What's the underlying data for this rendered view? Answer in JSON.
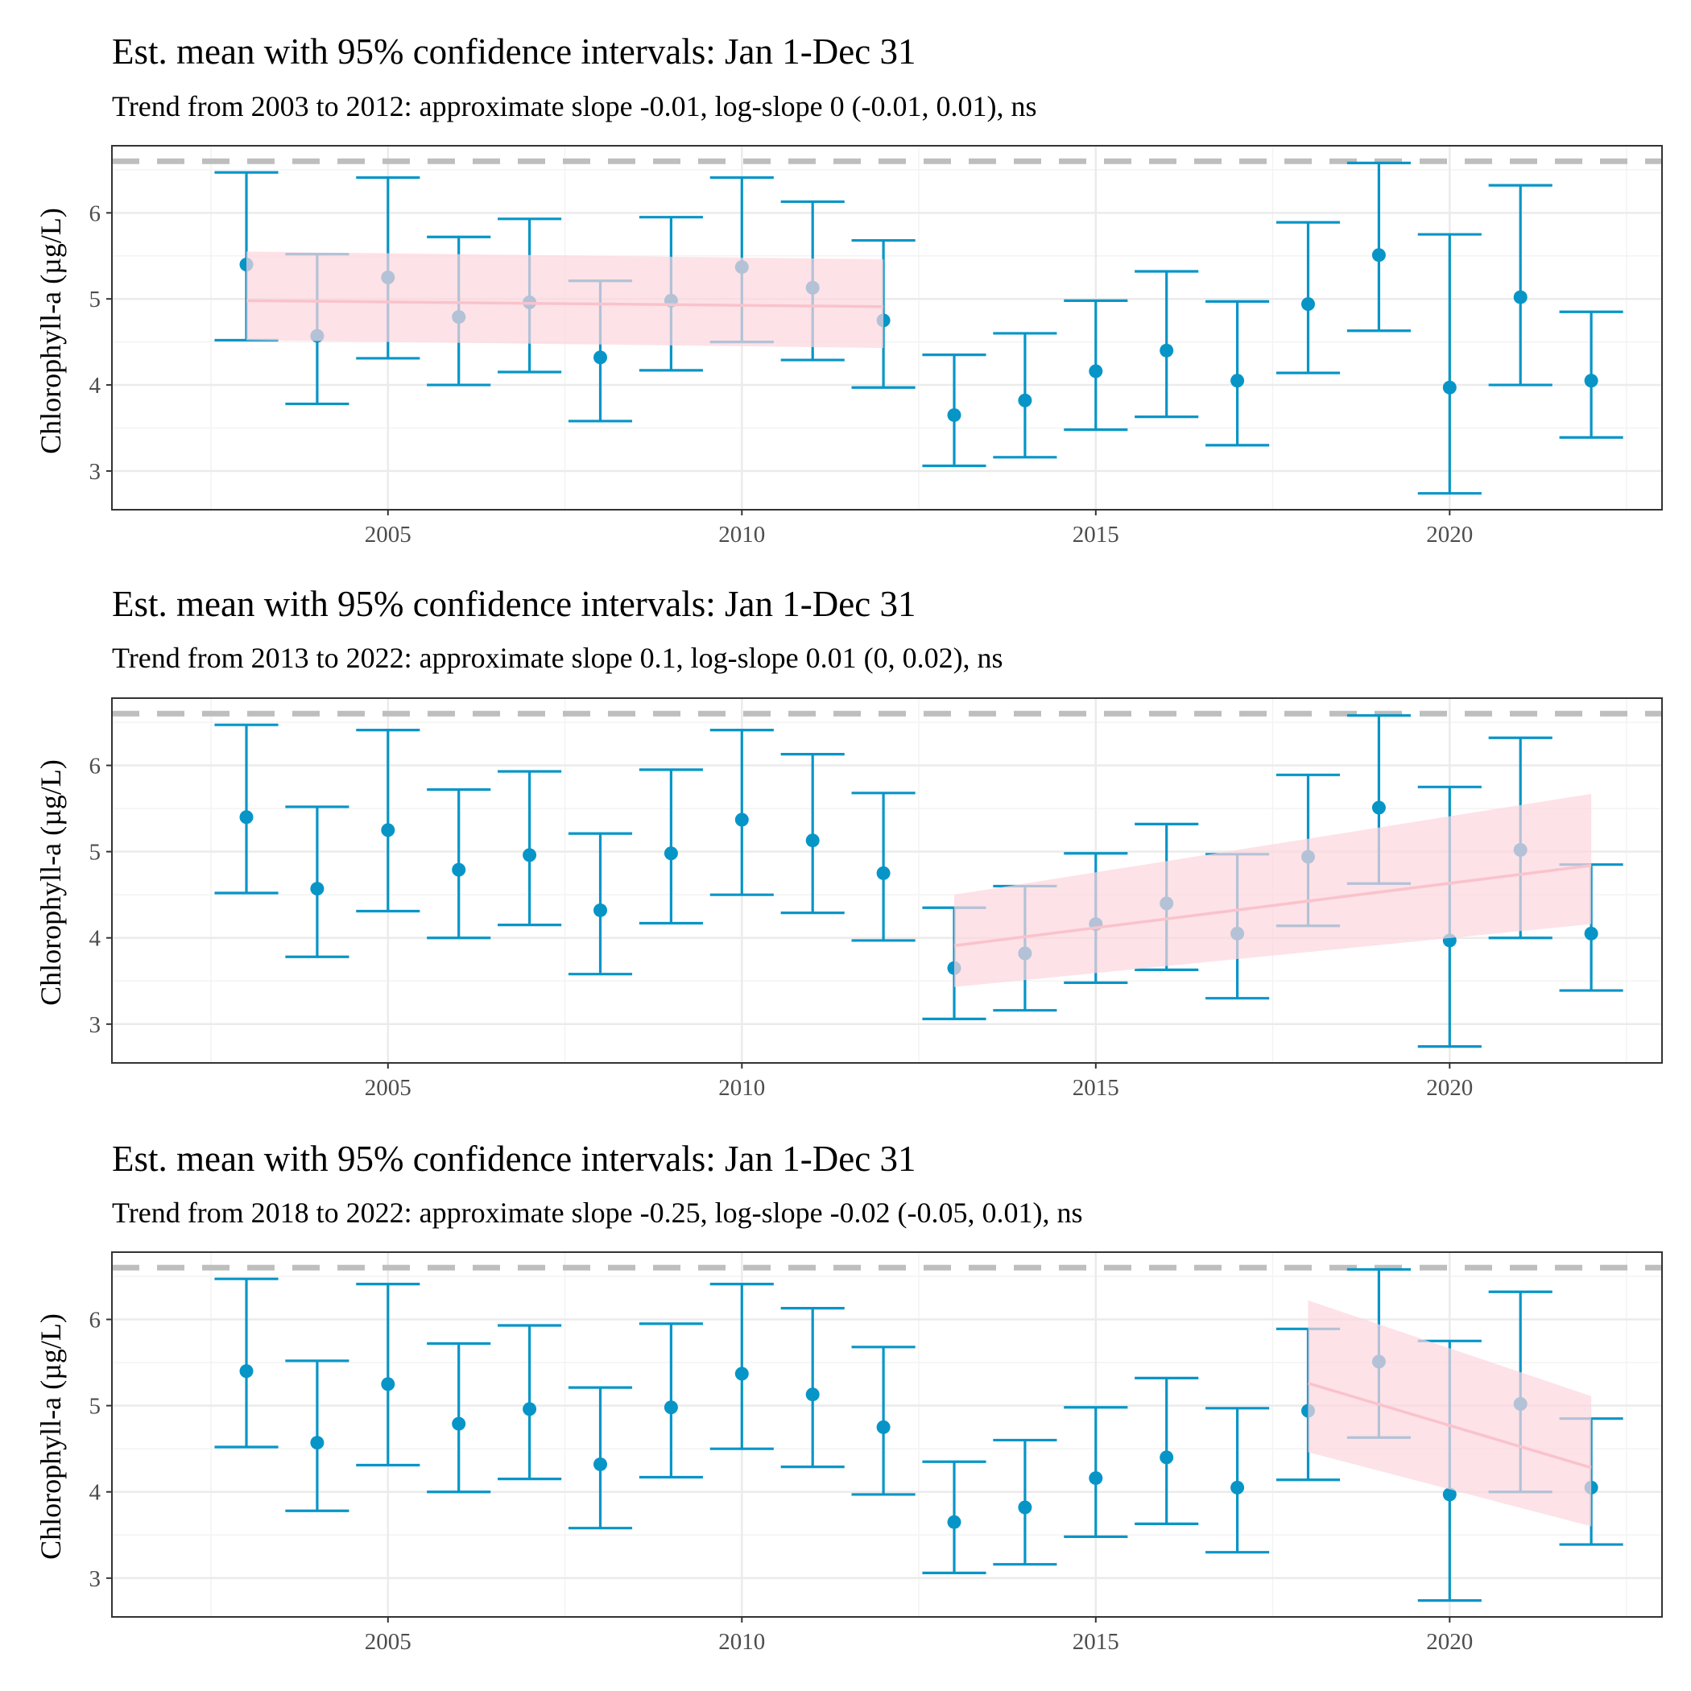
{
  "chart_data": [
    {
      "type": "errorbar",
      "title": "Est. mean with 95% confidence intervals: Jan 1-Dec 31",
      "subtitle": "Trend from 2003 to 2012: approximate slope -0.01, log-slope 0 (-0.01, 0.01), ns",
      "ylabel": "Chlorophyll-a (µg/L)",
      "xlim": [
        2001.1,
        2023.0
      ],
      "ylim": [
        2.55,
        6.78
      ],
      "xticks": [
        2005,
        2010,
        2015,
        2020
      ],
      "yticks": [
        3,
        4,
        5,
        6
      ],
      "grid": true,
      "threshold": 6.6,
      "points": [
        {
          "year": 2003,
          "mean": 5.4,
          "lower": 4.52,
          "upper": 6.47
        },
        {
          "year": 2004,
          "mean": 4.57,
          "lower": 3.78,
          "upper": 5.52
        },
        {
          "year": 2005,
          "mean": 5.25,
          "lower": 4.31,
          "upper": 6.41
        },
        {
          "year": 2006,
          "mean": 4.79,
          "lower": 4.0,
          "upper": 5.72
        },
        {
          "year": 2007,
          "mean": 4.96,
          "lower": 4.15,
          "upper": 5.93
        },
        {
          "year": 2008,
          "mean": 4.32,
          "lower": 3.58,
          "upper": 5.21
        },
        {
          "year": 2009,
          "mean": 4.98,
          "lower": 4.17,
          "upper": 5.95
        },
        {
          "year": 2010,
          "mean": 5.37,
          "lower": 4.5,
          "upper": 6.41
        },
        {
          "year": 2011,
          "mean": 5.13,
          "lower": 4.29,
          "upper": 6.13
        },
        {
          "year": 2012,
          "mean": 4.75,
          "lower": 3.97,
          "upper": 5.68
        },
        {
          "year": 2013,
          "mean": 3.65,
          "lower": 3.06,
          "upper": 4.35
        },
        {
          "year": 2014,
          "mean": 3.82,
          "lower": 3.16,
          "upper": 4.6
        },
        {
          "year": 2015,
          "mean": 4.16,
          "lower": 3.48,
          "upper": 4.98
        },
        {
          "year": 2016,
          "mean": 4.4,
          "lower": 3.63,
          "upper": 5.32
        },
        {
          "year": 2017,
          "mean": 4.05,
          "lower": 3.3,
          "upper": 4.97
        },
        {
          "year": 2018,
          "mean": 4.94,
          "lower": 4.14,
          "upper": 5.89
        },
        {
          "year": 2019,
          "mean": 5.51,
          "lower": 4.63,
          "upper": 6.58
        },
        {
          "year": 2020,
          "mean": 3.97,
          "lower": 2.74,
          "upper": 5.75
        },
        {
          "year": 2021,
          "mean": 5.02,
          "lower": 4.0,
          "upper": 6.32
        },
        {
          "year": 2022,
          "mean": 4.05,
          "lower": 3.39,
          "upper": 4.85
        }
      ],
      "trend": {
        "x_start": 2003,
        "x_end": 2012,
        "y_start": 4.98,
        "y_end": 4.91,
        "band_lower": [
          4.52,
          4.43
        ],
        "band_upper": [
          5.55,
          5.46
        ]
      }
    },
    {
      "type": "errorbar",
      "title": "Est. mean with 95% confidence intervals: Jan 1-Dec 31",
      "subtitle": "Trend from 2013 to 2022: approximate slope 0.1, log-slope 0.01 (0, 0.02), ns",
      "ylabel": "Chlorophyll-a (µg/L)",
      "xlim": [
        2001.1,
        2023.0
      ],
      "ylim": [
        2.55,
        6.78
      ],
      "xticks": [
        2005,
        2010,
        2015,
        2020
      ],
      "yticks": [
        3,
        4,
        5,
        6
      ],
      "grid": true,
      "threshold": 6.6,
      "points": [
        {
          "year": 2003,
          "mean": 5.4,
          "lower": 4.52,
          "upper": 6.47
        },
        {
          "year": 2004,
          "mean": 4.57,
          "lower": 3.78,
          "upper": 5.52
        },
        {
          "year": 2005,
          "mean": 5.25,
          "lower": 4.31,
          "upper": 6.41
        },
        {
          "year": 2006,
          "mean": 4.79,
          "lower": 4.0,
          "upper": 5.72
        },
        {
          "year": 2007,
          "mean": 4.96,
          "lower": 4.15,
          "upper": 5.93
        },
        {
          "year": 2008,
          "mean": 4.32,
          "lower": 3.58,
          "upper": 5.21
        },
        {
          "year": 2009,
          "mean": 4.98,
          "lower": 4.17,
          "upper": 5.95
        },
        {
          "year": 2010,
          "mean": 5.37,
          "lower": 4.5,
          "upper": 6.41
        },
        {
          "year": 2011,
          "mean": 5.13,
          "lower": 4.29,
          "upper": 6.13
        },
        {
          "year": 2012,
          "mean": 4.75,
          "lower": 3.97,
          "upper": 5.68
        },
        {
          "year": 2013,
          "mean": 3.65,
          "lower": 3.06,
          "upper": 4.35
        },
        {
          "year": 2014,
          "mean": 3.82,
          "lower": 3.16,
          "upper": 4.6
        },
        {
          "year": 2015,
          "mean": 4.16,
          "lower": 3.48,
          "upper": 4.98
        },
        {
          "year": 2016,
          "mean": 4.4,
          "lower": 3.63,
          "upper": 5.32
        },
        {
          "year": 2017,
          "mean": 4.05,
          "lower": 3.3,
          "upper": 4.97
        },
        {
          "year": 2018,
          "mean": 4.94,
          "lower": 4.14,
          "upper": 5.89
        },
        {
          "year": 2019,
          "mean": 5.51,
          "lower": 4.63,
          "upper": 6.58
        },
        {
          "year": 2020,
          "mean": 3.97,
          "lower": 2.74,
          "upper": 5.75
        },
        {
          "year": 2021,
          "mean": 5.02,
          "lower": 4.0,
          "upper": 6.32
        },
        {
          "year": 2022,
          "mean": 4.05,
          "lower": 3.39,
          "upper": 4.85
        }
      ],
      "trend": {
        "x_start": 2013,
        "x_end": 2022,
        "y_start": 3.91,
        "y_end": 4.84,
        "band_lower": [
          3.43,
          4.16
        ],
        "band_upper": [
          4.5,
          5.67
        ]
      }
    },
    {
      "type": "errorbar",
      "title": "Est. mean with 95% confidence intervals: Jan 1-Dec 31",
      "subtitle": "Trend from 2018 to 2022: approximate slope -0.25, log-slope -0.02 (-0.05, 0.01), ns",
      "ylabel": "Chlorophyll-a (µg/L)",
      "xlim": [
        2001.1,
        2023.0
      ],
      "ylim": [
        2.55,
        6.78
      ],
      "xticks": [
        2005,
        2010,
        2015,
        2020
      ],
      "yticks": [
        3,
        4,
        5,
        6
      ],
      "grid": true,
      "threshold": 6.6,
      "points": [
        {
          "year": 2003,
          "mean": 5.4,
          "lower": 4.52,
          "upper": 6.47
        },
        {
          "year": 2004,
          "mean": 4.57,
          "lower": 3.78,
          "upper": 5.52
        },
        {
          "year": 2005,
          "mean": 5.25,
          "lower": 4.31,
          "upper": 6.41
        },
        {
          "year": 2006,
          "mean": 4.79,
          "lower": 4.0,
          "upper": 5.72
        },
        {
          "year": 2007,
          "mean": 4.96,
          "lower": 4.15,
          "upper": 5.93
        },
        {
          "year": 2008,
          "mean": 4.32,
          "lower": 3.58,
          "upper": 5.21
        },
        {
          "year": 2009,
          "mean": 4.98,
          "lower": 4.17,
          "upper": 5.95
        },
        {
          "year": 2010,
          "mean": 5.37,
          "lower": 4.5,
          "upper": 6.41
        },
        {
          "year": 2011,
          "mean": 5.13,
          "lower": 4.29,
          "upper": 6.13
        },
        {
          "year": 2012,
          "mean": 4.75,
          "lower": 3.97,
          "upper": 5.68
        },
        {
          "year": 2013,
          "mean": 3.65,
          "lower": 3.06,
          "upper": 4.35
        },
        {
          "year": 2014,
          "mean": 3.82,
          "lower": 3.16,
          "upper": 4.6
        },
        {
          "year": 2015,
          "mean": 4.16,
          "lower": 3.48,
          "upper": 4.98
        },
        {
          "year": 2016,
          "mean": 4.4,
          "lower": 3.63,
          "upper": 5.32
        },
        {
          "year": 2017,
          "mean": 4.05,
          "lower": 3.3,
          "upper": 4.97
        },
        {
          "year": 2018,
          "mean": 4.94,
          "lower": 4.14,
          "upper": 5.89
        },
        {
          "year": 2019,
          "mean": 5.51,
          "lower": 4.63,
          "upper": 6.58
        },
        {
          "year": 2020,
          "mean": 3.97,
          "lower": 2.74,
          "upper": 5.75
        },
        {
          "year": 2021,
          "mean": 5.02,
          "lower": 4.0,
          "upper": 6.32
        },
        {
          "year": 2022,
          "mean": 4.05,
          "lower": 3.39,
          "upper": 4.85
        }
      ],
      "trend": {
        "x_start": 2018,
        "x_end": 2022,
        "y_start": 5.26,
        "y_end": 4.28,
        "band_lower": [
          4.46,
          3.6
        ],
        "band_upper": [
          6.22,
          5.11
        ]
      }
    }
  ],
  "colors": {
    "errorbar": "#0795c7",
    "point": "#0795c7",
    "trend_line": "#f9c3cc",
    "trend_band": "#fcd6dd",
    "threshold": "#bebebe",
    "grid_major": "#ebebeb",
    "grid_minor": "#f3f3f3",
    "panel_border": "#333333",
    "tick_text": "#4d4d4d"
  }
}
